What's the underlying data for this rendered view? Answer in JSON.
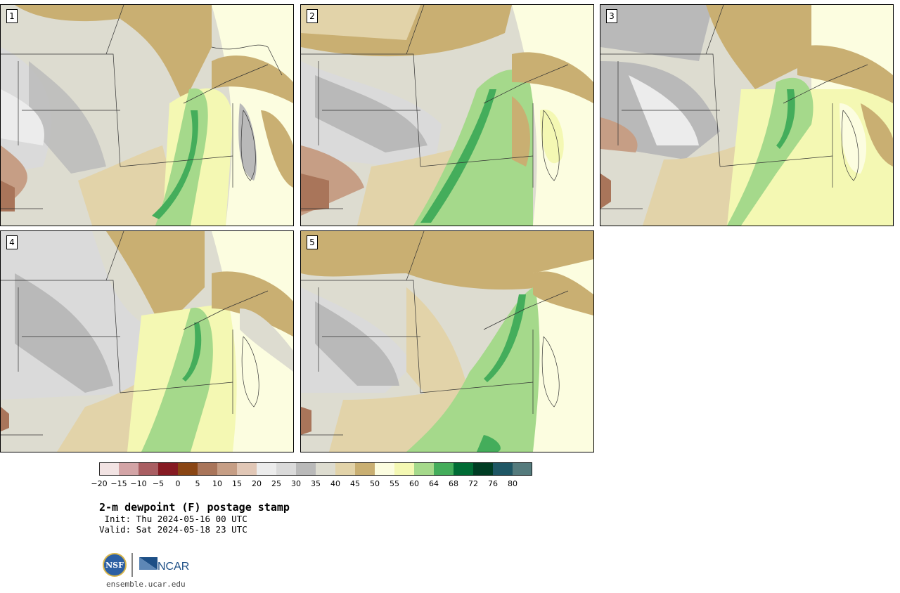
{
  "panels": [
    {
      "number": "1"
    },
    {
      "number": "2"
    },
    {
      "number": "3"
    },
    {
      "number": "4"
    },
    {
      "number": "5"
    }
  ],
  "colorbar": {
    "tick_labels": [
      "−20",
      "−15",
      "−10",
      "−5",
      "0",
      "5",
      "10",
      "15",
      "20",
      "25",
      "30",
      "35",
      "40",
      "45",
      "50",
      "55",
      "60",
      "64",
      "68",
      "72",
      "76",
      "80"
    ],
    "colors": [
      "#f2e3e3",
      "#d3a4a6",
      "#a95e62",
      "#861b23",
      "#8a4614",
      "#a9755a",
      "#c69e85",
      "#e1c7b6",
      "#ececec",
      "#dadada",
      "#b9b9b9",
      "#dddcd0",
      "#e2d3a9",
      "#c9af72",
      "#fcfde0",
      "#f4f8b3",
      "#a5d98b",
      "#44ad5b",
      "#006c35",
      "#003d24",
      "#1f5765",
      "#557b7d"
    ]
  },
  "title": "2-m dewpoint (F) postage stamp",
  "init": " Init: Thu 2024-05-16 00 UTC",
  "valid": "Valid: Sat 2024-05-18 23 UTC",
  "logo": {
    "nsf": "NSF",
    "ncar": "NCAR"
  },
  "website": "ensemble.ucar.edu"
}
